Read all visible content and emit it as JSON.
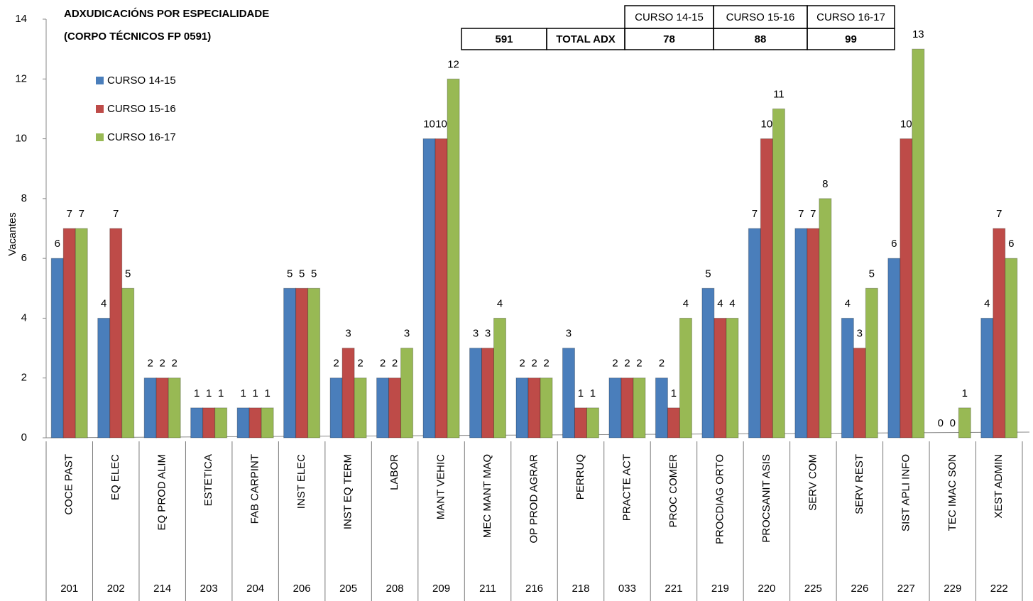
{
  "chart_data": {
    "type": "bar",
    "title": [
      "ADXUDICACIÓNS POR ESPECIALIDADE",
      "(CORPO TÉCNICOS  FP 0591)"
    ],
    "ylabel": "Vacantes",
    "categories": [
      "COCE PAST",
      "EQ ELEC",
      "EQ PROD ALIM",
      "ESTETICA",
      "FAB CARPINT",
      "INST ELEC",
      "INST EQ TERM",
      "LABOR",
      "MANT VEHIC",
      "MEC MANT MAQ",
      "OP PROD AGRAR",
      "PERRUQ",
      "PRACTE ACT",
      "PROC COMER",
      "PROCDIAG ORTO",
      "PROCSANIT ASIS",
      "SERV COM",
      "SERV REST",
      "SIST APLI INFO",
      "TEC IMAC SON",
      "XEST ADMIN"
    ],
    "codes": [
      "201",
      "202",
      "214",
      "203",
      "204",
      "206",
      "205",
      "208",
      "209",
      "211",
      "216",
      "218",
      "033",
      "221",
      "219",
      "220",
      "225",
      "226",
      "227",
      "229",
      "222"
    ],
    "series": [
      {
        "name": "CURSO 14-15",
        "color": "#4a7ebb",
        "values": [
          6,
          4,
          2,
          1,
          1,
          5,
          2,
          2,
          10,
          3,
          2,
          3,
          2,
          2,
          5,
          7,
          7,
          4,
          6,
          0,
          4
        ]
      },
      {
        "name": "CURSO 15-16",
        "color": "#be4b48",
        "values": [
          7,
          7,
          2,
          1,
          1,
          5,
          3,
          2,
          10,
          3,
          2,
          1,
          2,
          1,
          4,
          10,
          7,
          3,
          10,
          0,
          7
        ]
      },
      {
        "name": "CURSO 16-17",
        "color": "#98b954",
        "values": [
          7,
          5,
          2,
          1,
          1,
          5,
          2,
          3,
          12,
          4,
          2,
          1,
          2,
          4,
          4,
          11,
          8,
          5,
          13,
          1,
          6
        ]
      }
    ],
    "ylim": [
      0,
      14
    ],
    "yticks": [
      0,
      2,
      4,
      6,
      8,
      10,
      12,
      14
    ],
    "legend": "upper left"
  },
  "table": {
    "header": [
      "CURSO 14-15",
      "CURSO 15-16",
      "CURSO 16-17"
    ],
    "row": [
      591,
      "TOTAL ADX",
      78,
      88,
      99
    ]
  }
}
